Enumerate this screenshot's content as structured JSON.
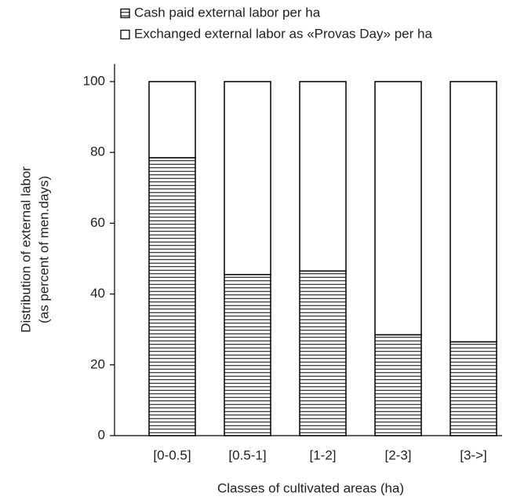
{
  "chart_data": {
    "type": "stacked_bar",
    "xlabel": "Classes of cultivated areas (ha)",
    "ylabel": [
      "Distribution of external labor",
      "(as percent of men.days)"
    ],
    "categories": [
      "[0-0.5]",
      "[0.5-1]",
      "[1-2]",
      "[2-3]",
      "[3->]"
    ],
    "series": [
      {
        "name": "Cash paid external labor per ha",
        "color": "#000000",
        "hatch": "horizontal",
        "values": [
          78.5,
          45.5,
          46.5,
          28.5,
          26.5
        ]
      },
      {
        "name": "Exchanged external labor as «Provas Day» per ha",
        "color": "#000000",
        "hatch": "none",
        "values": [
          21.5,
          54.5,
          53.5,
          71.5,
          73.5
        ]
      }
    ],
    "ylim": [
      0,
      105
    ],
    "yticks": [
      0,
      20,
      40,
      60,
      80,
      100
    ],
    "grid": false,
    "legend": "top-left"
  }
}
